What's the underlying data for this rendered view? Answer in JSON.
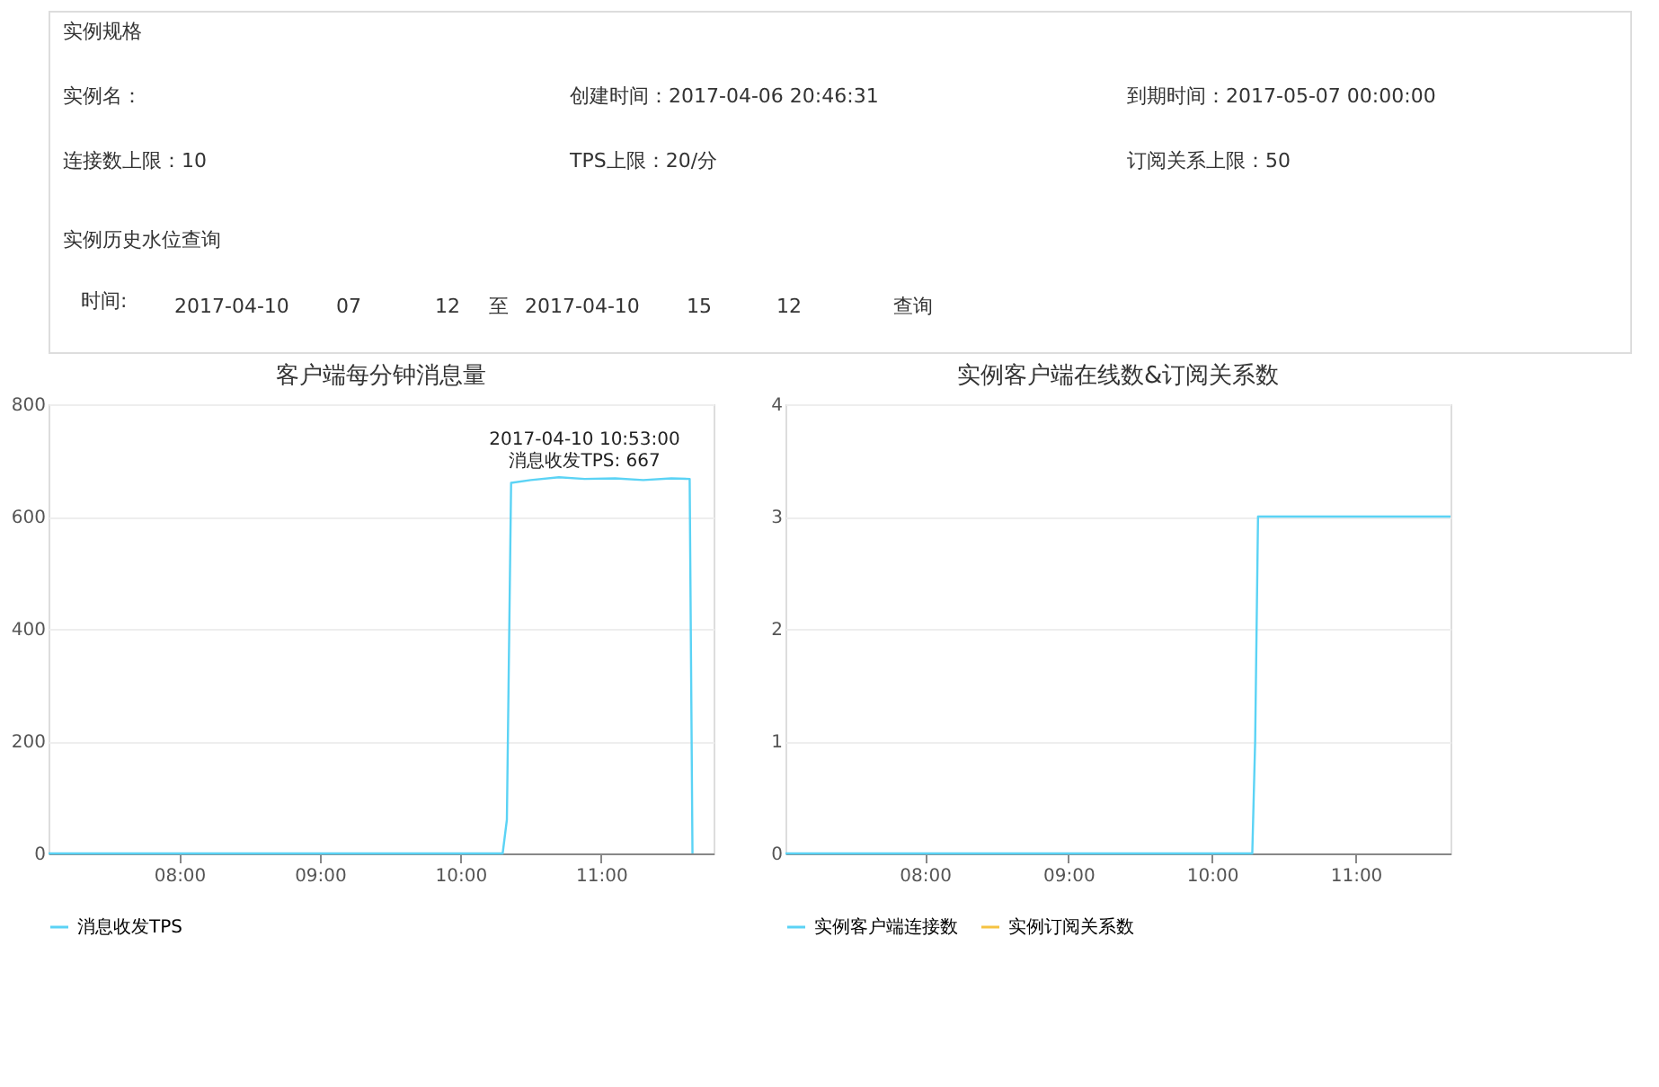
{
  "chart_data": [
    {
      "type": "other",
      "annotations": [
        "实例规格",
        "实例名：",
        "创建时间：2017-04-06 20:46:31",
        "到期时间：2017-05-07 00:00:00",
        "连接数上限：10",
        "TPS上限：20/分",
        "订阅关系上限：50",
        "实例历史水位查询",
        "时间:",
        "2017-04-10",
        "07",
        "12",
        "至",
        "2017-04-10",
        "15",
        "12",
        "查询"
      ]
    },
    {
      "type": "line",
      "title": "客户端每分钟消息量",
      "marker": "none",
      "grid": "y",
      "legend": "bottom",
      "xlim": [
        7.07,
        11.8
      ],
      "xticks": [
        {
          "value": 8,
          "label": "08:00"
        },
        {
          "value": 9,
          "label": "09:00"
        },
        {
          "value": 10,
          "label": "10:00"
        },
        {
          "value": 11,
          "label": "11:00"
        }
      ],
      "ylim": [
        0,
        800
      ],
      "yticks": [
        0,
        200,
        400,
        600,
        800
      ],
      "annotations": [
        {
          "text": "2017-04-10 10:53:00\n消息收发TPS: 667",
          "x": 10.883,
          "y": 667
        }
      ],
      "series": [
        {
          "name": "消息收发TPS",
          "color": "#5bd3f5",
          "x": [
            7.07,
            10.3,
            10.33,
            10.36,
            10.5,
            10.7,
            10.883,
            11.1,
            11.3,
            11.5,
            11.63,
            11.65
          ],
          "values": [
            0,
            0,
            60,
            660,
            665,
            670,
            667,
            668,
            665,
            668,
            667,
            0
          ]
        }
      ]
    },
    {
      "type": "line",
      "title": "实例客户端在线数&订阅关系数",
      "marker": "none",
      "grid": "y",
      "legend": "bottom",
      "xlim": [
        7.03,
        11.66
      ],
      "xticks": [
        {
          "value": 8,
          "label": "08:00"
        },
        {
          "value": 9,
          "label": "09:00"
        },
        {
          "value": 10,
          "label": "10:00"
        },
        {
          "value": 11,
          "label": "11:00"
        }
      ],
      "ylim": [
        0,
        4
      ],
      "yticks": [
        0,
        1,
        2,
        3,
        4
      ],
      "series": [
        {
          "name": "实例客户端连接数",
          "color": "#5bd3f5",
          "x": [
            7.03,
            10.28,
            10.3,
            10.32,
            11.66
          ],
          "values": [
            0,
            0,
            1,
            3,
            3
          ]
        },
        {
          "name": "实例订阅关系数",
          "color": "#f5c342"
        }
      ]
    }
  ]
}
